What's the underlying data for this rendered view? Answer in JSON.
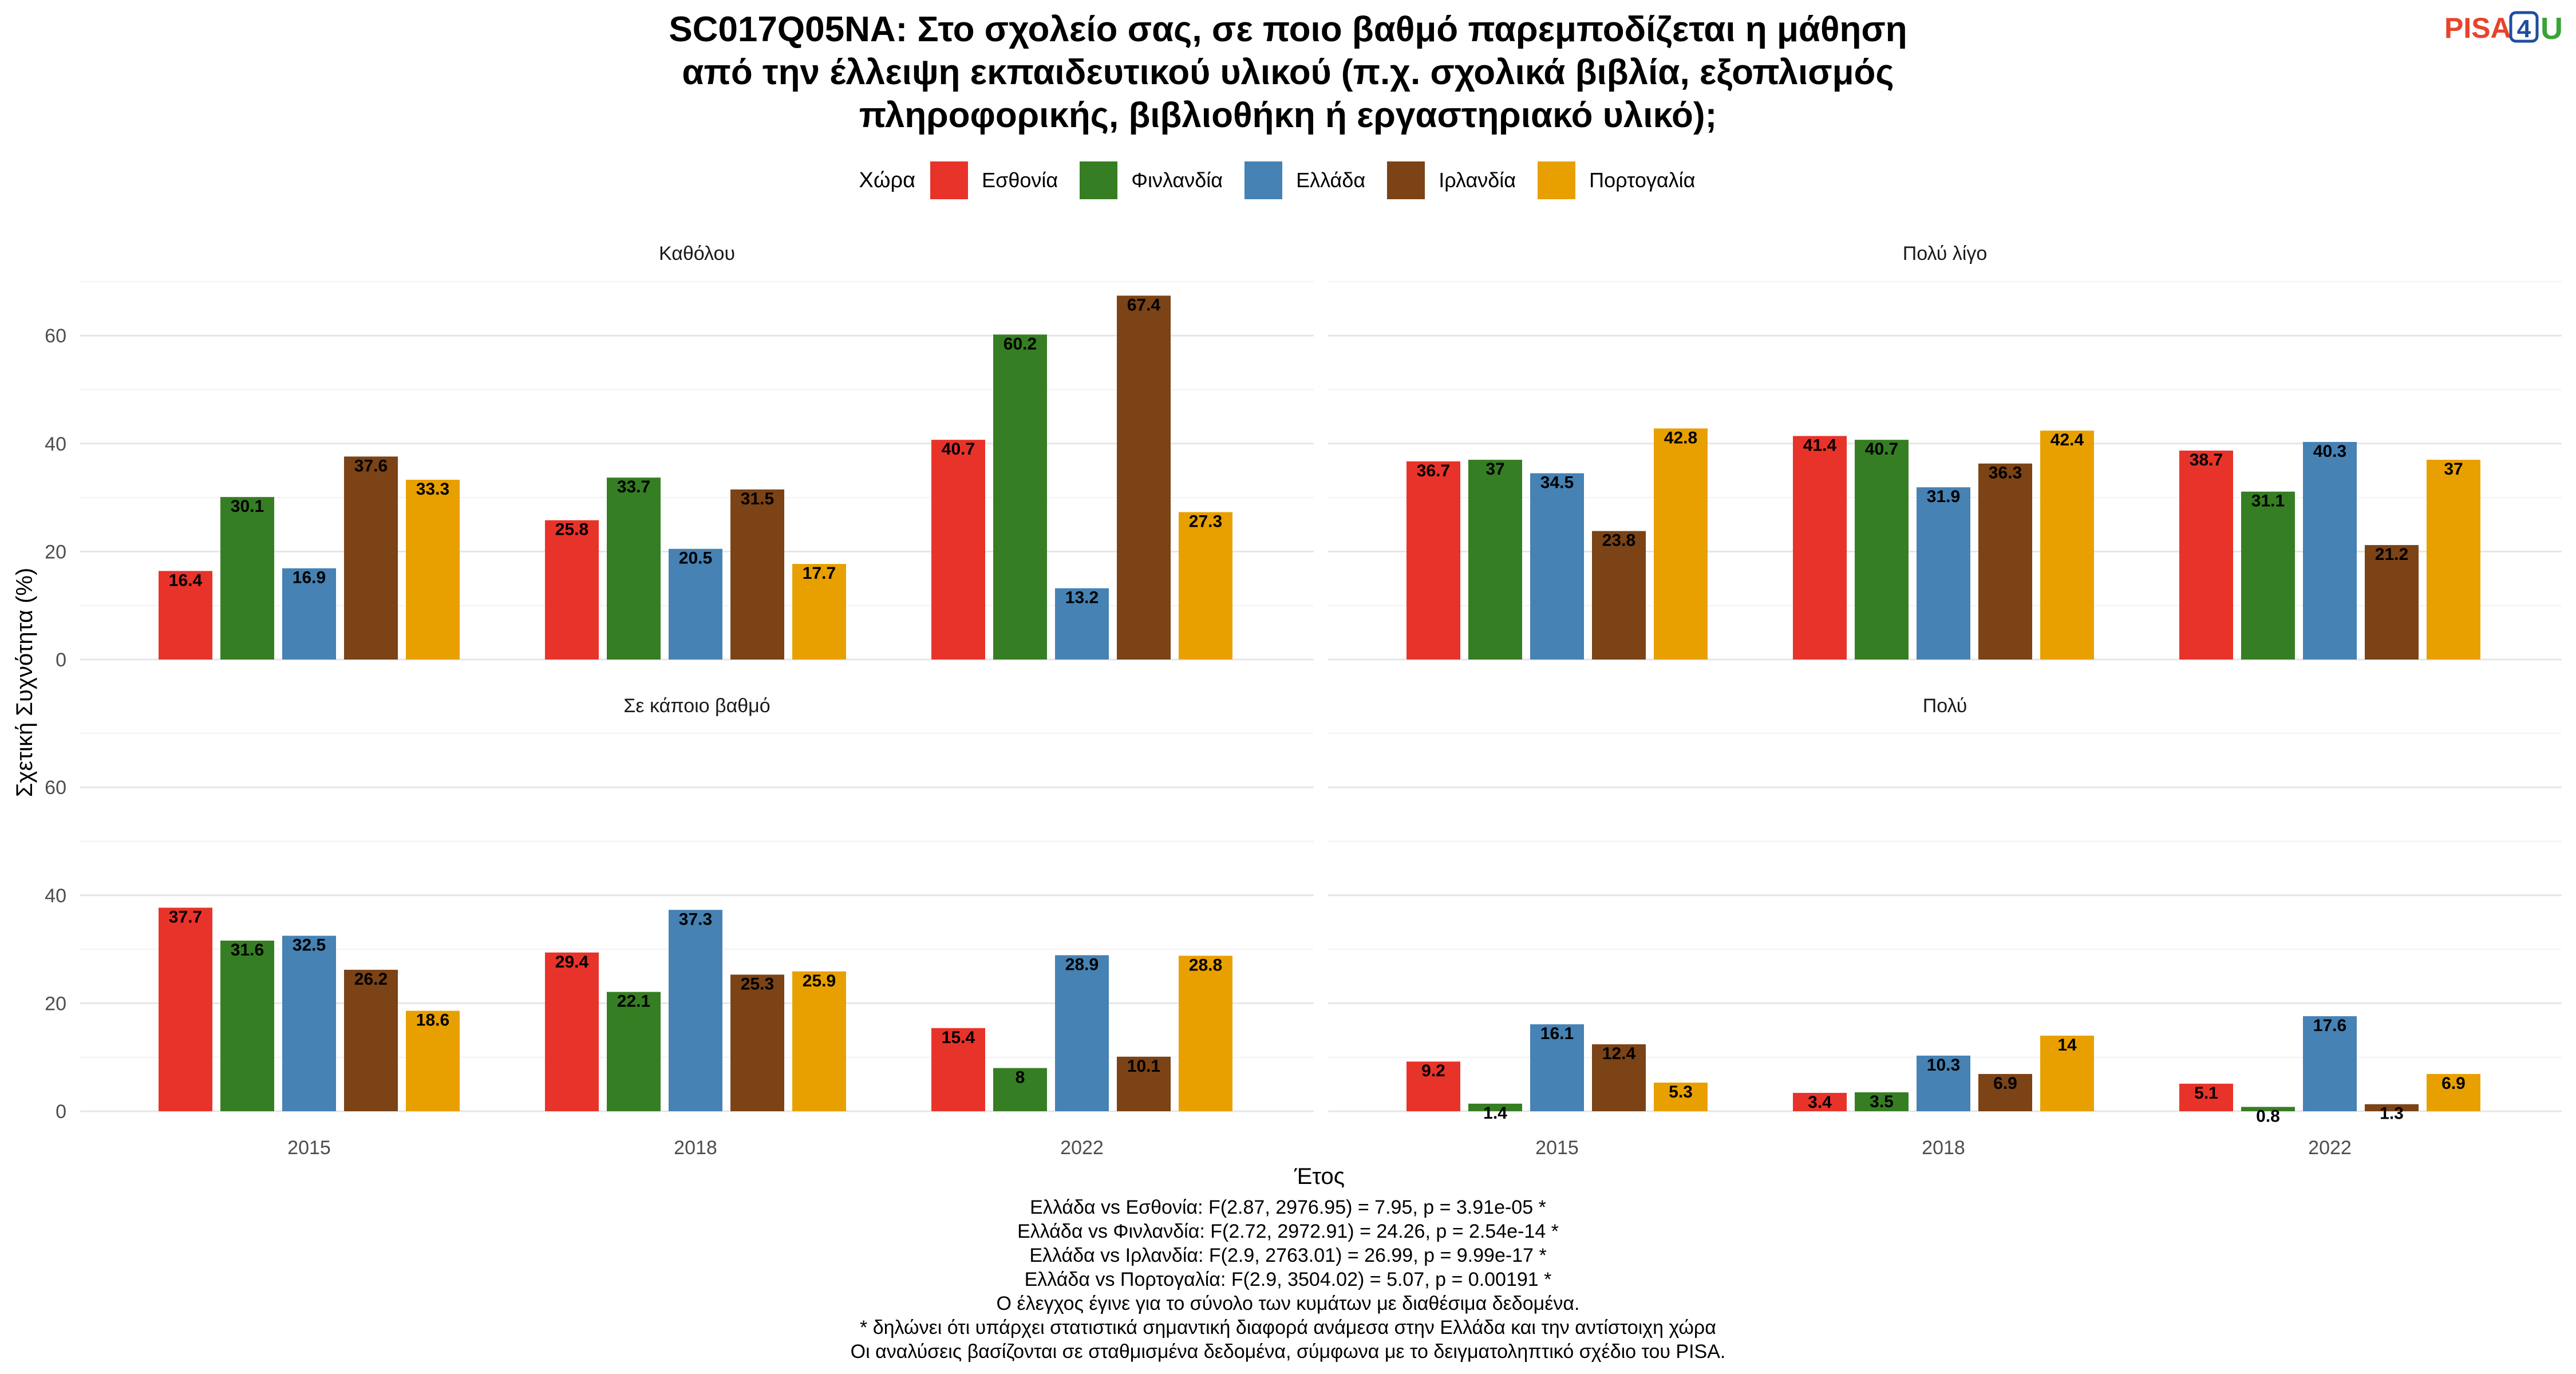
{
  "title_lines": [
    "SC017Q05NA: Στο σχολείο σας, σε ποιο βαθμό παρεμποδίζεται η μάθηση",
    "από την έλλειψη εκπαιδευτικού υλικού (π.χ. σχολικά βιβλία, εξοπλισμός",
    "πληροφορικής, βιβλιοθήκη ή εργαστηριακό υλικό);"
  ],
  "logo": {
    "text": "PISA",
    "digit": "4",
    "letter": "U",
    "colors": {
      "pisa": "#e8432b",
      "digit": "#1f4e9e",
      "u": "#3aa335"
    }
  },
  "legend": {
    "title": "Χώρα",
    "items": [
      {
        "label": "Εσθονία",
        "color": "#e8332a"
      },
      {
        "label": "Φινλανδία",
        "color": "#367e23"
      },
      {
        "label": "Ελλάδα",
        "color": "#4682b4"
      },
      {
        "label": "Ιρλανδία",
        "color": "#7b4316"
      },
      {
        "label": "Πορτογαλία",
        "color": "#e8a000"
      }
    ]
  },
  "chart_data": {
    "type": "bar",
    "xlabel": "Έτος",
    "ylabel": "Σχετική Συχνότητα (%)",
    "categories": [
      "2015",
      "2018",
      "2022"
    ],
    "yticks": [
      0,
      20,
      40,
      60
    ],
    "ylim": [
      0,
      71
    ],
    "grid": true,
    "legend_position": "top",
    "facets": [
      {
        "label": "Καθόλου",
        "series": [
          {
            "name": "Εσθονία",
            "values": [
              16.4,
              25.8,
              40.7
            ]
          },
          {
            "name": "Φινλανδία",
            "values": [
              30.1,
              33.7,
              60.2
            ]
          },
          {
            "name": "Ελλάδα",
            "values": [
              16.9,
              20.5,
              13.2
            ]
          },
          {
            "name": "Ιρλανδία",
            "values": [
              37.6,
              31.5,
              67.4
            ]
          },
          {
            "name": "Πορτογαλία",
            "values": [
              33.3,
              17.7,
              27.3
            ]
          }
        ]
      },
      {
        "label": "Πολύ λίγο",
        "series": [
          {
            "name": "Εσθονία",
            "values": [
              36.7,
              41.4,
              38.7
            ]
          },
          {
            "name": "Φινλανδία",
            "values": [
              37,
              40.7,
              31.1
            ]
          },
          {
            "name": "Ελλάδα",
            "values": [
              34.5,
              31.9,
              40.3
            ]
          },
          {
            "name": "Ιρλανδία",
            "values": [
              23.8,
              36.3,
              21.2
            ]
          },
          {
            "name": "Πορτογαλία",
            "values": [
              42.8,
              42.4,
              37
            ]
          }
        ]
      },
      {
        "label": "Σε κάποιο βαθμό",
        "series": [
          {
            "name": "Εσθονία",
            "values": [
              37.7,
              29.4,
              15.4
            ]
          },
          {
            "name": "Φινλανδία",
            "values": [
              31.6,
              22.1,
              8
            ]
          },
          {
            "name": "Ελλάδα",
            "values": [
              32.5,
              37.3,
              28.9
            ]
          },
          {
            "name": "Ιρλανδία",
            "values": [
              26.2,
              25.3,
              10.1
            ]
          },
          {
            "name": "Πορτογαλία",
            "values": [
              18.6,
              25.9,
              28.8
            ]
          }
        ]
      },
      {
        "label": "Πολύ",
        "series": [
          {
            "name": "Εσθονία",
            "values": [
              9.2,
              3.4,
              5.1
            ]
          },
          {
            "name": "Φινλανδία",
            "values": [
              1.4,
              3.5,
              0.8
            ]
          },
          {
            "name": "Ελλάδα",
            "values": [
              16.1,
              10.3,
              17.6
            ]
          },
          {
            "name": "Ιρλανδία",
            "values": [
              12.4,
              6.9,
              1.3
            ]
          },
          {
            "name": "Πορτογαλία",
            "values": [
              5.3,
              14,
              6.9
            ]
          }
        ]
      }
    ]
  },
  "footnotes": [
    "Ελλάδα vs Εσθονία: F(2.87, 2976.95) = 7.95, p = 3.91e-05 *",
    "Ελλάδα vs Φινλανδία: F(2.72, 2972.91) = 24.26, p = 2.54e-14 *",
    "Ελλάδα vs Ιρλανδία: F(2.9, 2763.01) = 26.99, p = 9.99e-17 *",
    "Ελλάδα vs Πορτογαλία: F(2.9, 3504.02) = 5.07, p = 0.00191 *",
    "Ο έλεγχος έγινε για το σύνολο των κυμάτων με διαθέσιμα δεδομένα.",
    "* δηλώνει ότι υπάρχει στατιστικά σημαντική διαφορά ανάμεσα στην Ελλάδα και την αντίστοιχη χώρα",
    "Οι αναλύσεις βασίζονται σε σταθμισμένα δεδομένα, σύμφωνα με το δειγματοληπτικό σχέδιο του PISA."
  ]
}
